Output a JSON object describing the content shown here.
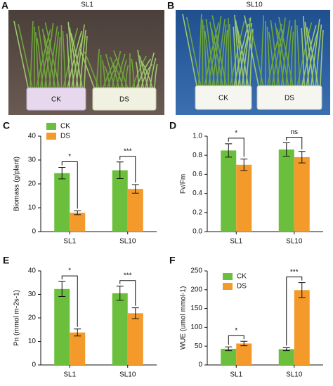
{
  "photos": [
    {
      "label": "A",
      "title": "SL1",
      "pots": [
        "CK",
        "DS"
      ]
    },
    {
      "label": "B",
      "title": "SL10",
      "pots": [
        "CK",
        "DS"
      ]
    }
  ],
  "chart_data": [
    {
      "type": "bar",
      "panel": "C",
      "ylabel": "Biomass (g/plant)",
      "categories": [
        "SL1",
        "SL10"
      ],
      "series": [
        {
          "name": "CK",
          "color": "#6cbf3c",
          "values": [
            24.5,
            25.7
          ],
          "errors": [
            2.4,
            3.5
          ]
        },
        {
          "name": "DS",
          "color": "#f39a2b",
          "values": [
            7.9,
            17.9
          ],
          "errors": [
            0.8,
            1.8
          ]
        }
      ],
      "significance": [
        "*",
        "***"
      ],
      "ylim": [
        0,
        40
      ],
      "yticks": [
        0,
        10,
        20,
        30,
        40
      ],
      "legend": "upper left"
    },
    {
      "type": "bar",
      "panel": "D",
      "ylabel": "Fv/Fm",
      "categories": [
        "SL1",
        "SL10"
      ],
      "series": [
        {
          "name": "CK",
          "color": "#6cbf3c",
          "values": [
            0.85,
            0.86
          ],
          "errors": [
            0.07,
            0.07
          ]
        },
        {
          "name": "DS",
          "color": "#f39a2b",
          "values": [
            0.7,
            0.78
          ],
          "errors": [
            0.06,
            0.06
          ]
        }
      ],
      "significance": [
        "*",
        "ns"
      ],
      "ylim": [
        0,
        1.0
      ],
      "yticks": [
        {
          "value": 0,
          "label": "0.0"
        },
        0.2,
        0.4,
        0.6,
        0.8,
        {
          "value": 1.0,
          "label": "1.0"
        }
      ],
      "legend": null
    },
    {
      "type": "bar",
      "panel": "E",
      "ylabel": "Pn (mmol m-2s-1)",
      "categories": [
        "SL1",
        "SL10"
      ],
      "series": [
        {
          "name": "CK",
          "color": "#6cbf3c",
          "values": [
            32.3,
            30.5
          ],
          "errors": [
            3.2,
            3.0
          ]
        },
        {
          "name": "DS",
          "color": "#f39a2b",
          "values": [
            13.8,
            22.0
          ],
          "errors": [
            1.5,
            2.3
          ]
        }
      ],
      "significance": [
        "*",
        "***"
      ],
      "ylim": [
        0,
        40
      ],
      "yticks": [
        0,
        10,
        20,
        30,
        40
      ],
      "legend": null
    },
    {
      "type": "bar",
      "panel": "F",
      "ylabel": "WUE (umol mmol-1)",
      "categories": [
        "SL1",
        "SL10"
      ],
      "series": [
        {
          "name": "CK",
          "color": "#6cbf3c",
          "values": [
            43,
            42
          ],
          "errors": [
            5,
            4
          ]
        },
        {
          "name": "DS",
          "color": "#f39a2b",
          "values": [
            57,
            199
          ],
          "errors": [
            6,
            20
          ]
        }
      ],
      "significance": [
        "*",
        "***"
      ],
      "ylim": [
        0,
        250
      ],
      "yticks": [
        0,
        50,
        100,
        150,
        200,
        250
      ],
      "legend": "upper center"
    }
  ]
}
